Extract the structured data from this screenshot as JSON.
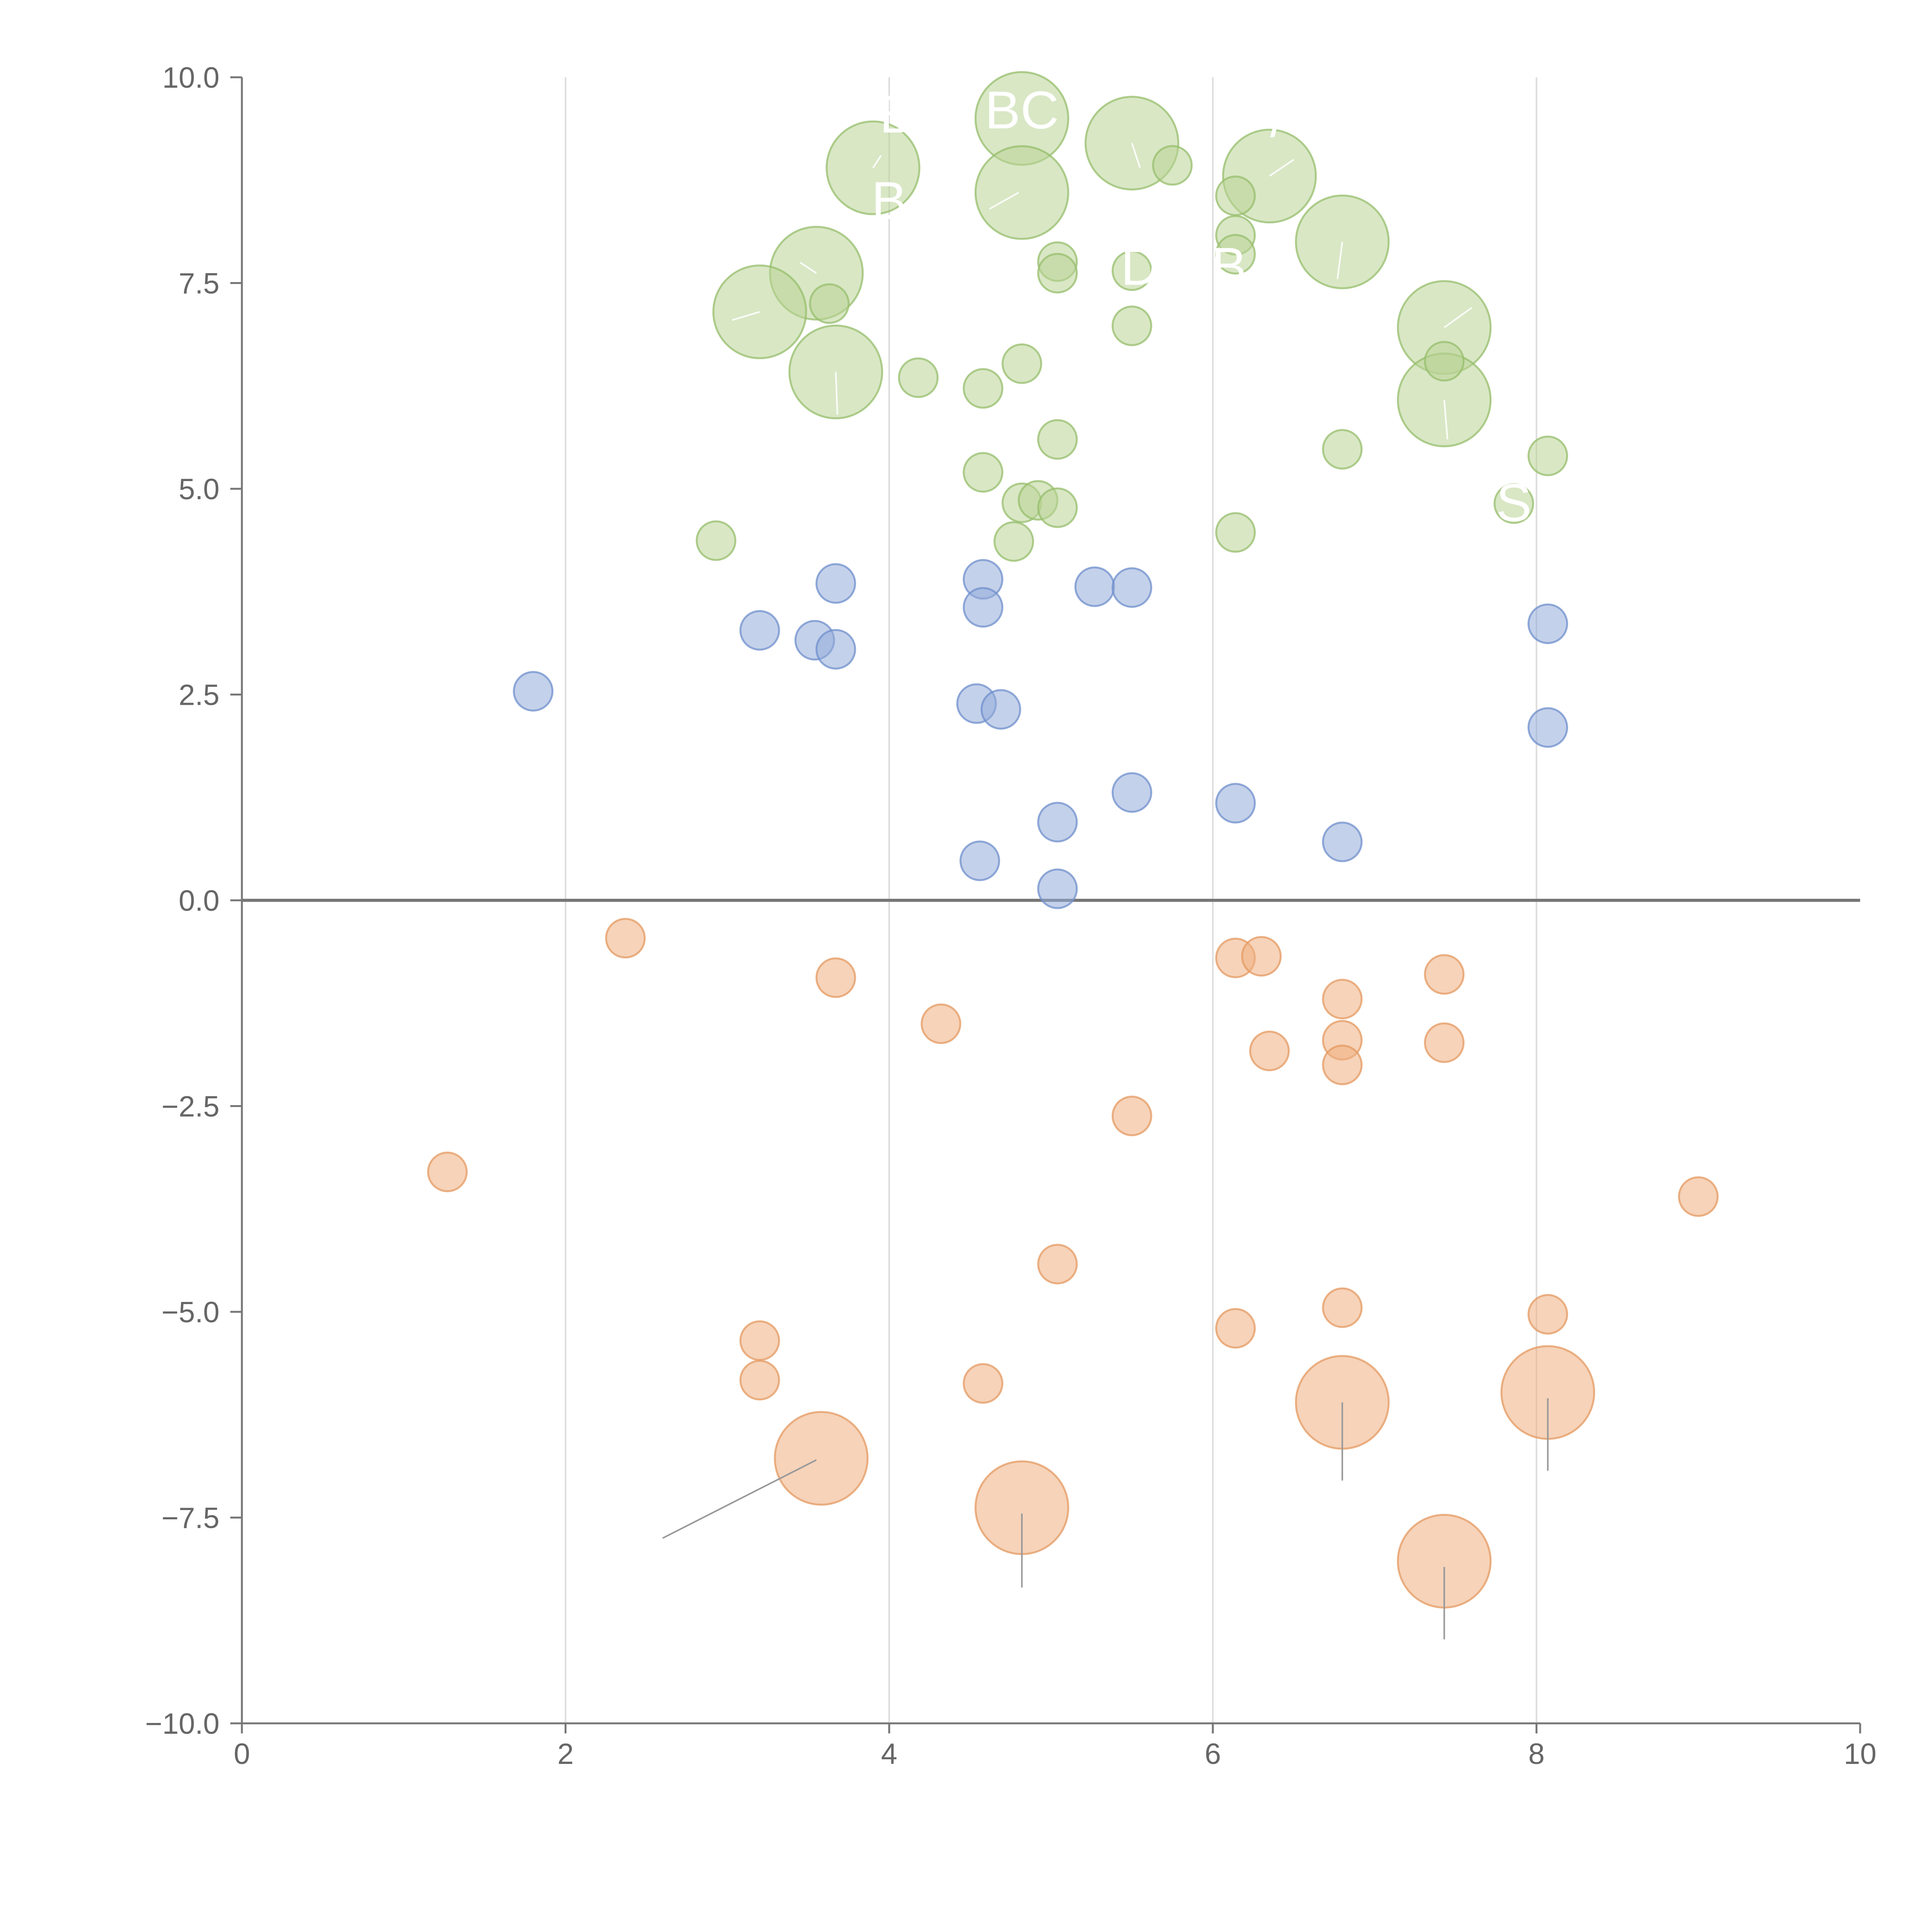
{
  "chart_data": {
    "type": "scatter",
    "title": "",
    "xlabel": "",
    "ylabel": "",
    "xlim": [
      0,
      10
    ],
    "ylim": [
      -10,
      10
    ],
    "grid": "vertical lines",
    "zero_line": true,
    "x_ticks": [
      "0",
      "2",
      "4",
      "6",
      "8",
      "10"
    ],
    "y_ticks": [
      "10.0",
      "7.5",
      "5.0",
      "2.5",
      "0.0",
      "−2.5",
      "−5.0",
      "−7.5",
      "−10.0"
    ],
    "colors": {
      "green_fill": "#b9d395",
      "green_stroke": "#95bd6b",
      "blue_fill": "#93acd8",
      "blue_stroke": "#6f8fcc",
      "orange_fill": "#eeae7f",
      "orange_stroke": "#e49a62",
      "leader_light": "#ffffff",
      "leader_dark": "#999999"
    },
    "series": [
      {
        "name": "green",
        "points": [
          {
            "x": 3.9,
            "y": 8.9,
            "size": "large"
          },
          {
            "x": 4.82,
            "y": 9.5,
            "size": "large"
          },
          {
            "x": 5.5,
            "y": 9.2,
            "size": "large"
          },
          {
            "x": 4.82,
            "y": 8.6,
            "size": "large"
          },
          {
            "x": 6.35,
            "y": 8.8,
            "size": "large"
          },
          {
            "x": 6.8,
            "y": 8.0,
            "size": "large"
          },
          {
            "x": 3.55,
            "y": 7.62,
            "size": "large"
          },
          {
            "x": 3.2,
            "y": 7.15,
            "size": "large"
          },
          {
            "x": 3.67,
            "y": 6.42,
            "size": "large"
          },
          {
            "x": 7.43,
            "y": 6.96,
            "size": "large"
          },
          {
            "x": 7.43,
            "y": 6.08,
            "size": "large"
          },
          {
            "x": 5.75,
            "y": 8.93,
            "size": "small"
          },
          {
            "x": 6.14,
            "y": 8.56,
            "size": "small"
          },
          {
            "x": 6.14,
            "y": 8.08,
            "size": "small"
          },
          {
            "x": 6.14,
            "y": 7.85,
            "size": "small"
          },
          {
            "x": 5.04,
            "y": 7.76,
            "size": "small"
          },
          {
            "x": 5.04,
            "y": 7.62,
            "size": "small"
          },
          {
            "x": 5.5,
            "y": 7.65,
            "size": "small"
          },
          {
            "x": 3.63,
            "y": 7.25,
            "size": "small"
          },
          {
            "x": 5.5,
            "y": 6.98,
            "size": "small"
          },
          {
            "x": 7.43,
            "y": 6.55,
            "size": "small"
          },
          {
            "x": 4.82,
            "y": 6.52,
            "size": "small"
          },
          {
            "x": 4.18,
            "y": 6.35,
            "size": "small"
          },
          {
            "x": 4.58,
            "y": 6.22,
            "size": "small"
          },
          {
            "x": 5.04,
            "y": 5.6,
            "size": "small"
          },
          {
            "x": 6.8,
            "y": 5.48,
            "size": "small"
          },
          {
            "x": 8.07,
            "y": 5.4,
            "size": "small"
          },
          {
            "x": 4.58,
            "y": 5.2,
            "size": "small"
          },
          {
            "x": 4.82,
            "y": 4.83,
            "size": "small"
          },
          {
            "x": 4.92,
            "y": 4.86,
            "size": "small"
          },
          {
            "x": 5.04,
            "y": 4.77,
            "size": "small"
          },
          {
            "x": 7.86,
            "y": 4.82,
            "size": "small"
          },
          {
            "x": 6.14,
            "y": 4.47,
            "size": "small"
          },
          {
            "x": 2.93,
            "y": 4.37,
            "size": "small"
          },
          {
            "x": 4.77,
            "y": 4.36,
            "size": "small"
          }
        ]
      },
      {
        "name": "blue",
        "points": [
          {
            "x": 3.67,
            "y": 3.85,
            "size": "small"
          },
          {
            "x": 4.58,
            "y": 3.9,
            "size": "small"
          },
          {
            "x": 5.27,
            "y": 3.81,
            "size": "small"
          },
          {
            "x": 5.5,
            "y": 3.8,
            "size": "small"
          },
          {
            "x": 4.58,
            "y": 3.56,
            "size": "small"
          },
          {
            "x": 8.07,
            "y": 3.36,
            "size": "small"
          },
          {
            "x": 3.2,
            "y": 3.28,
            "size": "small"
          },
          {
            "x": 3.54,
            "y": 3.16,
            "size": "small"
          },
          {
            "x": 3.67,
            "y": 3.05,
            "size": "small"
          },
          {
            "x": 1.8,
            "y": 2.54,
            "size": "small"
          },
          {
            "x": 4.54,
            "y": 2.39,
            "size": "small"
          },
          {
            "x": 4.69,
            "y": 2.32,
            "size": "small"
          },
          {
            "x": 8.07,
            "y": 2.1,
            "size": "small"
          },
          {
            "x": 5.5,
            "y": 1.31,
            "size": "small"
          },
          {
            "x": 6.14,
            "y": 1.18,
            "size": "small"
          },
          {
            "x": 5.04,
            "y": 0.95,
            "size": "small"
          },
          {
            "x": 6.8,
            "y": 0.71,
            "size": "small"
          },
          {
            "x": 4.56,
            "y": 0.48,
            "size": "small"
          },
          {
            "x": 5.04,
            "y": 0.14,
            "size": "small"
          }
        ]
      },
      {
        "name": "orange",
        "points": [
          {
            "x": 2.37,
            "y": -0.46,
            "size": "small"
          },
          {
            "x": 6.14,
            "y": -0.7,
            "size": "small"
          },
          {
            "x": 6.3,
            "y": -0.68,
            "size": "small"
          },
          {
            "x": 7.43,
            "y": -0.9,
            "size": "small"
          },
          {
            "x": 3.67,
            "y": -0.94,
            "size": "small"
          },
          {
            "x": 6.8,
            "y": -1.2,
            "size": "small"
          },
          {
            "x": 4.32,
            "y": -1.5,
            "size": "small"
          },
          {
            "x": 6.8,
            "y": -1.7,
            "size": "small"
          },
          {
            "x": 7.43,
            "y": -1.73,
            "size": "small"
          },
          {
            "x": 6.35,
            "y": -1.83,
            "size": "small"
          },
          {
            "x": 6.8,
            "y": -2.0,
            "size": "small"
          },
          {
            "x": 5.5,
            "y": -2.62,
            "size": "small"
          },
          {
            "x": 1.27,
            "y": -3.3,
            "size": "small"
          },
          {
            "x": 9.0,
            "y": -3.6,
            "size": "small"
          },
          {
            "x": 5.04,
            "y": -4.42,
            "size": "small"
          },
          {
            "x": 6.8,
            "y": -4.95,
            "size": "small"
          },
          {
            "x": 8.07,
            "y": -5.03,
            "size": "small"
          },
          {
            "x": 6.14,
            "y": -5.2,
            "size": "small"
          },
          {
            "x": 3.2,
            "y": -5.35,
            "size": "small"
          },
          {
            "x": 3.2,
            "y": -5.83,
            "size": "small"
          },
          {
            "x": 4.58,
            "y": -5.87,
            "size": "small"
          },
          {
            "x": 6.8,
            "y": -6.1,
            "size": "large"
          },
          {
            "x": 8.07,
            "y": -5.98,
            "size": "large"
          },
          {
            "x": 3.58,
            "y": -6.78,
            "size": "large"
          },
          {
            "x": 4.82,
            "y": -7.38,
            "size": "large"
          },
          {
            "x": 7.43,
            "y": -8.03,
            "size": "large"
          }
        ]
      }
    ],
    "annotations": [
      {
        "text": "B",
        "x": 4.05,
        "y": 9.5
      },
      {
        "text": "BC",
        "x": 4.82,
        "y": 9.55
      },
      {
        "text": "B",
        "x": 4.0,
        "y": 8.45
      },
      {
        "text": "/",
        "x": 6.4,
        "y": 9.45
      },
      {
        "text": "D",
        "x": 5.55,
        "y": 7.65
      },
      {
        "text": "B",
        "x": 6.1,
        "y": 7.65
      },
      {
        "text": "S",
        "x": 7.86,
        "y": 4.78
      }
    ],
    "leaders": [
      {
        "color": "light",
        "from": [
          3.95,
          9.05
        ],
        "to": [
          3.9,
          8.9
        ]
      },
      {
        "color": "light",
        "from": [
          4.62,
          8.4
        ],
        "to": [
          4.8,
          8.6
        ]
      },
      {
        "color": "light",
        "from": [
          5.55,
          8.9
        ],
        "to": [
          5.5,
          9.2
        ]
      },
      {
        "color": "light",
        "from": [
          6.5,
          9.0
        ],
        "to": [
          6.35,
          8.8
        ]
      },
      {
        "color": "light",
        "from": [
          6.77,
          7.55
        ],
        "to": [
          6.8,
          8.0
        ]
      },
      {
        "color": "light",
        "from": [
          3.45,
          7.75
        ],
        "to": [
          3.55,
          7.62
        ]
      },
      {
        "color": "light",
        "from": [
          3.03,
          7.05
        ],
        "to": [
          3.2,
          7.15
        ]
      },
      {
        "color": "light",
        "from": [
          3.68,
          5.9
        ],
        "to": [
          3.67,
          6.42
        ]
      },
      {
        "color": "light",
        "from": [
          7.6,
          7.2
        ],
        "to": [
          7.43,
          6.96
        ]
      },
      {
        "color": "light",
        "from": [
          7.45,
          5.6
        ],
        "to": [
          7.43,
          6.08
        ]
      },
      {
        "color": "dark",
        "from": [
          2.6,
          -7.75
        ],
        "to": [
          3.55,
          -6.8
        ]
      },
      {
        "color": "dark",
        "from": [
          4.82,
          -8.35
        ],
        "to": [
          4.82,
          -7.45
        ]
      },
      {
        "color": "dark",
        "from": [
          6.8,
          -7.05
        ],
        "to": [
          6.8,
          -6.1
        ]
      },
      {
        "color": "dark",
        "from": [
          8.07,
          -6.93
        ],
        "to": [
          8.07,
          -6.05
        ]
      },
      {
        "color": "dark",
        "from": [
          7.43,
          -8.98
        ],
        "to": [
          7.43,
          -8.1
        ]
      }
    ]
  }
}
